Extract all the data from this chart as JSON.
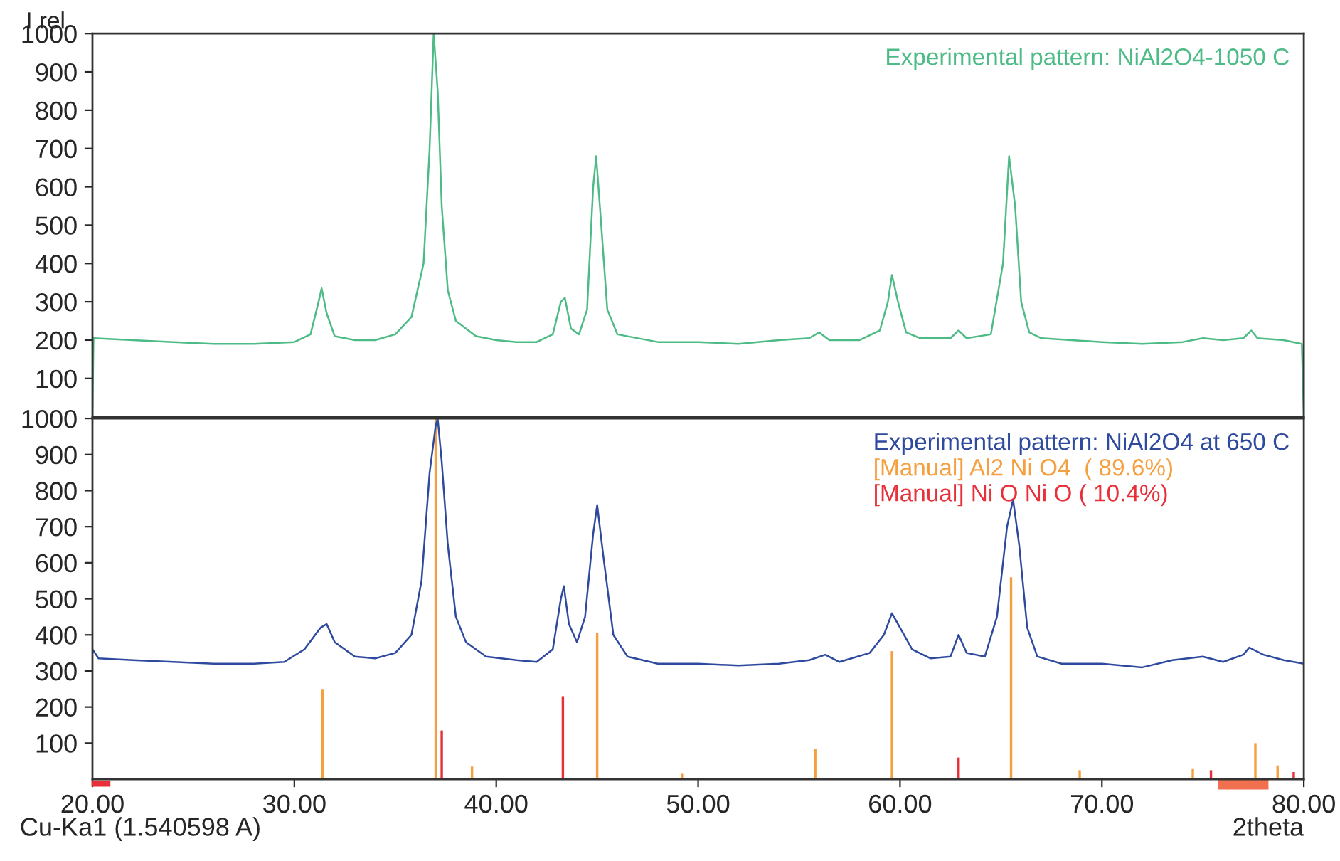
{
  "chart_data": [
    {
      "type": "line",
      "ylabel": "I rel",
      "xlim": [
        20,
        80
      ],
      "ylim": [
        0,
        1000
      ],
      "yticks": [
        100,
        200,
        300,
        400,
        500,
        600,
        700,
        800,
        900,
        1000
      ],
      "tick_labels": "y",
      "grid": false,
      "legend": "top right",
      "series": [
        {
          "name": "Experimental pattern: NiAl2O4-1050 C",
          "color": "#4dbb85",
          "x": [
            20,
            20.05,
            22,
            24,
            26,
            28,
            30,
            30.8,
            31.2,
            31.35,
            31.6,
            32,
            33,
            34,
            35,
            35.8,
            36.4,
            36.7,
            36.9,
            37.1,
            37.3,
            37.6,
            38,
            39,
            40,
            41,
            42,
            42.8,
            43.2,
            43.4,
            43.7,
            44.1,
            44.5,
            44.8,
            44.95,
            45.2,
            45.5,
            46,
            48,
            50,
            52,
            54,
            55.5,
            56,
            56.5,
            58,
            59,
            59.4,
            59.6,
            59.9,
            60.3,
            61,
            62.5,
            62.9,
            63.3,
            64.5,
            65.1,
            65.4,
            65.7,
            66,
            66.4,
            67,
            70,
            72,
            74,
            75,
            76,
            77,
            77.4,
            77.7,
            79,
            79.9,
            80
          ],
          "values": [
            0,
            205,
            200,
            195,
            190,
            190,
            195,
            215,
            300,
            335,
            270,
            210,
            200,
            200,
            215,
            260,
            400,
            700,
            1000,
            850,
            550,
            330,
            250,
            210,
            200,
            195,
            195,
            215,
            300,
            310,
            230,
            215,
            280,
            600,
            680,
            500,
            280,
            215,
            195,
            195,
            190,
            200,
            205,
            220,
            200,
            200,
            225,
            300,
            370,
            300,
            220,
            205,
            205,
            225,
            205,
            215,
            400,
            680,
            550,
            300,
            220,
            205,
            195,
            190,
            195,
            205,
            200,
            205,
            225,
            205,
            200,
            190,
            0
          ]
        }
      ]
    },
    {
      "type": "line",
      "xlabel": "2theta",
      "xlim": [
        20,
        80
      ],
      "ylim": [
        0,
        1000
      ],
      "xticks": [
        {
          "value": 20,
          "label": "20.00"
        },
        {
          "value": 30,
          "label": "30.00"
        },
        {
          "value": 40,
          "label": "40.00"
        },
        {
          "value": 50,
          "label": "50.00"
        },
        {
          "value": 60,
          "label": "60.00"
        },
        {
          "value": 70,
          "label": "70.00"
        },
        {
          "value": 80,
          "label": "80.00"
        }
      ],
      "yticks": [
        100,
        200,
        300,
        400,
        500,
        600,
        700,
        800,
        900,
        1000
      ],
      "grid": false,
      "legend": "top right",
      "annotations": [
        "Cu-Ka1 (1.540598 A)"
      ],
      "series": [
        {
          "name": "Experimental pattern: NiAl2O4 at 650 C",
          "color": "#2e4a9e",
          "x": [
            20,
            20.3,
            22,
            24,
            26,
            28,
            29.5,
            30.5,
            31.3,
            31.6,
            32,
            33,
            34,
            35,
            35.8,
            36.3,
            36.7,
            37.0,
            37.1,
            37.3,
            37.6,
            38,
            38.5,
            39.5,
            41,
            42,
            42.8,
            43.2,
            43.35,
            43.6,
            44,
            44.4,
            44.8,
            45.0,
            45.3,
            45.8,
            46.5,
            48,
            50,
            52,
            54,
            55.5,
            56.3,
            57,
            58.5,
            59.2,
            59.6,
            60,
            60.6,
            61.5,
            62.5,
            62.9,
            63.3,
            64.2,
            64.8,
            65.3,
            65.6,
            65.9,
            66.3,
            66.8,
            68,
            70,
            72,
            73.5,
            75,
            76,
            77,
            77.3,
            78,
            79,
            80
          ],
          "values": [
            360,
            335,
            330,
            325,
            320,
            320,
            325,
            360,
            420,
            430,
            380,
            340,
            335,
            350,
            400,
            550,
            850,
            980,
            1000,
            880,
            650,
            450,
            380,
            340,
            330,
            325,
            360,
            500,
            535,
            430,
            380,
            450,
            680,
            760,
            620,
            400,
            340,
            320,
            320,
            315,
            320,
            330,
            345,
            325,
            350,
            400,
            460,
            420,
            360,
            335,
            340,
            400,
            350,
            340,
            450,
            700,
            775,
            650,
            420,
            340,
            320,
            320,
            310,
            330,
            340,
            325,
            345,
            365,
            345,
            330,
            320
          ]
        },
        {
          "type": "bar",
          "name": "[Manual] Al2 Ni O4  ( 89.6%)",
          "color": "#f5a040",
          "x": [
            31.4,
            37.0,
            38.8,
            45.0,
            49.2,
            55.8,
            59.6,
            65.5,
            68.9,
            74.5,
            77.6,
            78.7
          ],
          "values": [
            250,
            1000,
            35,
            405,
            15,
            83,
            355,
            560,
            25,
            28,
            100,
            38
          ]
        },
        {
          "type": "bar",
          "name": "[Manual] Ni O Ni O ( 10.4%)",
          "color": "#e8303a",
          "x": [
            37.3,
            43.3,
            62.9,
            75.4,
            79.5
          ],
          "values": [
            135,
            230,
            60,
            25,
            20
          ]
        }
      ]
    }
  ]
}
